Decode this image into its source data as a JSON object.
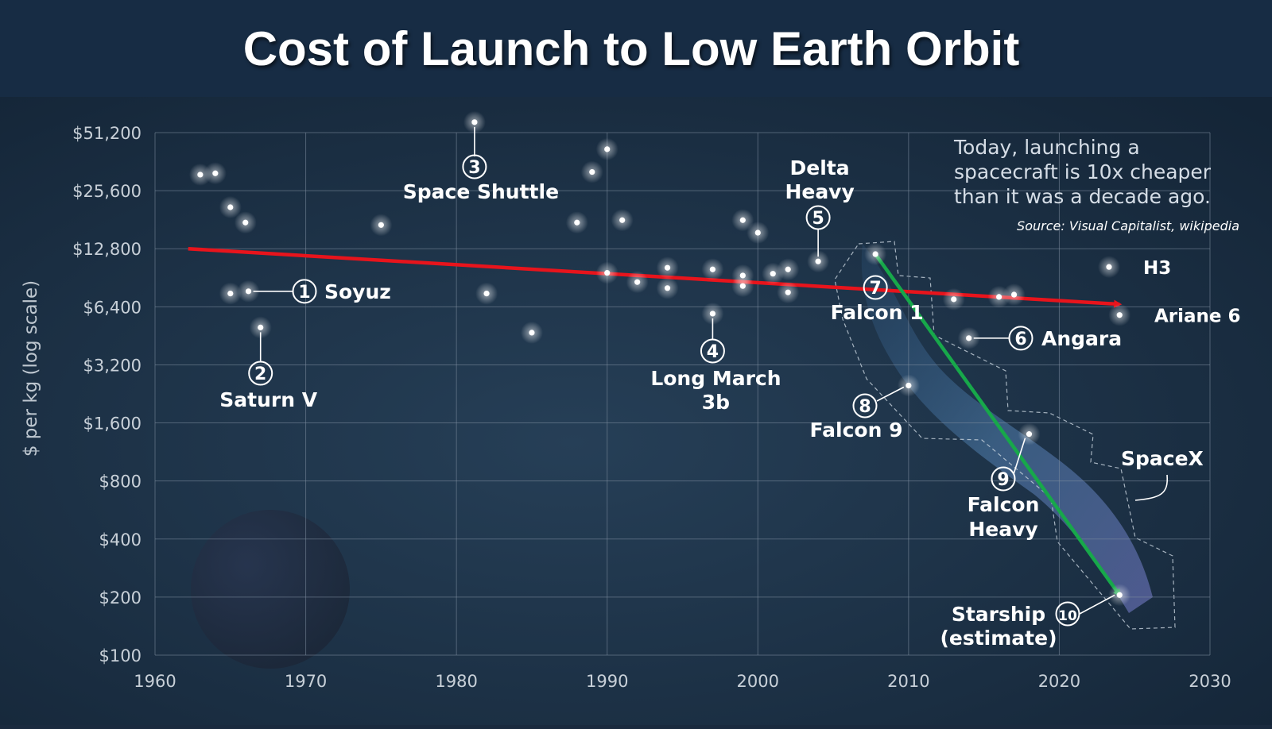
{
  "title": "Cost of Launch to Low Earth Orbit",
  "chart_data": {
    "type": "scatter",
    "title": "Cost of Launch to Low Earth Orbit",
    "xlabel": "",
    "ylabel": "$ per kg (log scale)",
    "xlim": [
      1960,
      2030
    ],
    "ylim": [
      100,
      51200
    ],
    "yscale": "log2",
    "x_ticks": [
      "1960",
      "1970",
      "1980",
      "1990",
      "2000",
      "2010",
      "2020",
      "2030"
    ],
    "y_ticks": [
      {
        "value": 51200,
        "label": "$51,200"
      },
      {
        "value": 25600,
        "label": "$25,600"
      },
      {
        "value": 12800,
        "label": "$12,800"
      },
      {
        "value": 6400,
        "label": "$6,400"
      },
      {
        "value": 3200,
        "label": "$3,200"
      },
      {
        "value": 1600,
        "label": "$1,600"
      },
      {
        "value": 800,
        "label": "$800"
      },
      {
        "value": 400,
        "label": "$400"
      },
      {
        "value": 200,
        "label": "$200"
      },
      {
        "value": 100,
        "label": "$100"
      }
    ],
    "points": [
      {
        "x": 1963.0,
        "y": 31000
      },
      {
        "x": 1964.0,
        "y": 31500
      },
      {
        "x": 1965.0,
        "y": 21000
      },
      {
        "x": 1966.0,
        "y": 17500
      },
      {
        "x": 1965.0,
        "y": 7500
      },
      {
        "x": 1966.2,
        "y": 7700
      },
      {
        "x": 1967.0,
        "y": 5000
      },
      {
        "x": 1975.0,
        "y": 17000
      },
      {
        "x": 1981.2,
        "y": 58000
      },
      {
        "x": 1982.0,
        "y": 7500
      },
      {
        "x": 1985.0,
        "y": 4700
      },
      {
        "x": 1988.0,
        "y": 17500
      },
      {
        "x": 1989.0,
        "y": 32000
      },
      {
        "x": 1990.0,
        "y": 42000
      },
      {
        "x": 1990.0,
        "y": 9600
      },
      {
        "x": 1991.0,
        "y": 18000
      },
      {
        "x": 1992.0,
        "y": 8600
      },
      {
        "x": 1994.0,
        "y": 10200
      },
      {
        "x": 1994.0,
        "y": 8000
      },
      {
        "x": 1997.0,
        "y": 10000
      },
      {
        "x": 1997.0,
        "y": 5900
      },
      {
        "x": 1999.0,
        "y": 18000
      },
      {
        "x": 1999.0,
        "y": 9300
      },
      {
        "x": 1999.0,
        "y": 8200
      },
      {
        "x": 2000.0,
        "y": 15500
      },
      {
        "x": 2001.0,
        "y": 9500
      },
      {
        "x": 2002.0,
        "y": 10000
      },
      {
        "x": 2002.0,
        "y": 7600
      },
      {
        "x": 2004.0,
        "y": 11000
      },
      {
        "x": 2007.8,
        "y": 12000
      },
      {
        "x": 2013.0,
        "y": 7000
      },
      {
        "x": 2014.0,
        "y": 4400
      },
      {
        "x": 2016.0,
        "y": 7200
      },
      {
        "x": 2017.0,
        "y": 7400
      },
      {
        "x": 2010.0,
        "y": 2500
      },
      {
        "x": 2018.0,
        "y": 1400
      },
      {
        "x": 2024.0,
        "y": 205
      },
      {
        "x": 2023.3,
        "y": 10300
      },
      {
        "x": 2024.0,
        "y": 5800
      }
    ],
    "labels": [
      {
        "num": "1",
        "name": "Soyuz"
      },
      {
        "num": "2",
        "name": "Saturn V"
      },
      {
        "num": "3",
        "name": "Space Shuttle"
      },
      {
        "num": "4",
        "name": "Long March",
        "name2": "3b"
      },
      {
        "num": "5",
        "name": "Delta",
        "name2": "Heavy"
      },
      {
        "num": "6",
        "name": "Angara"
      },
      {
        "num": "7",
        "name": "Falcon 1"
      },
      {
        "num": "8",
        "name": "Falcon 9"
      },
      {
        "num": "9",
        "name": "Falcon",
        "name2": "Heavy"
      },
      {
        "num": "10",
        "name": "Starship",
        "name2": "(estimate)"
      }
    ],
    "extra_labels": {
      "h3": "H3",
      "ariane6": "Ariane 6",
      "spacex": "SpaceX"
    },
    "annotation": {
      "lines": [
        "Today, launching a",
        "spacecraft is 10x cheaper",
        "than it was a decade ago."
      ],
      "source": "Source: Visual Capitalist, wikipedia"
    },
    "trendlines": [
      {
        "name": "overall trend",
        "color": "#e8141c",
        "from": {
          "x": 1962.2,
          "y": 12800
        },
        "to": {
          "x": 2024.0,
          "y": 6600
        }
      },
      {
        "name": "SpaceX trend",
        "color": "#17a84a",
        "from": {
          "x": 2007.8,
          "y": 12000
        },
        "to": {
          "x": 2024.0,
          "y": 205
        }
      }
    ],
    "grid": true,
    "colors": {
      "background": "#1c2f45",
      "grid": "#7f8ea0",
      "text": "#e6ecf2",
      "points": "#ffffff"
    }
  }
}
